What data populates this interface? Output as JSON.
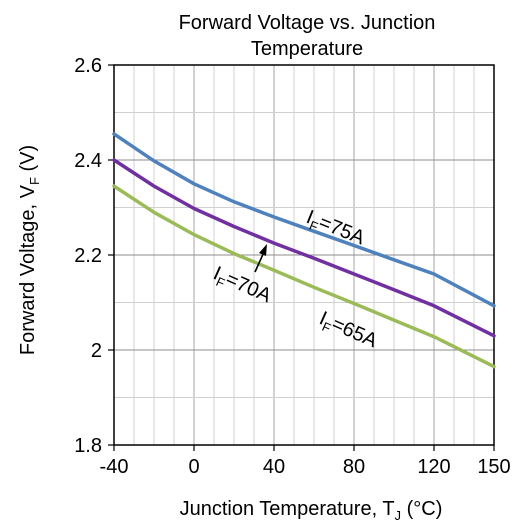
{
  "chart_data": {
    "type": "line",
    "title": [
      "Forward Voltage vs. Junction",
      "Temperature"
    ],
    "xlabel": {
      "main": "Junction Temperature, T",
      "sub": "J",
      "unit": " (°C)"
    },
    "ylabel": {
      "main": "Forward Voltage, V",
      "sub": "F",
      "unit": " (V)"
    },
    "xlim": [
      -40,
      150
    ],
    "ylim": [
      1.8,
      2.6
    ],
    "x_ticks": [
      -40,
      0,
      40,
      80,
      120,
      150
    ],
    "x_tick_labels": [
      "-40",
      "0",
      "40",
      "80",
      "120",
      "150"
    ],
    "y_ticks": [
      1.8,
      2,
      2.2,
      2.4,
      2.6
    ],
    "y_tick_labels": [
      "1.8",
      "2",
      "2.2",
      "2.4",
      "2.6"
    ],
    "grid": true,
    "series": [
      {
        "label": {
          "main": "I",
          "sub": "F",
          "rest": "=75A"
        },
        "color": "#4f81bd",
        "x": [
          -40,
          -20,
          0,
          20,
          40,
          60,
          80,
          100,
          120,
          150
        ],
        "y": [
          2.455,
          2.398,
          2.35,
          2.312,
          2.28,
          2.25,
          2.22,
          2.19,
          2.16,
          2.093
        ]
      },
      {
        "label": {
          "main": "I",
          "sub": "F",
          "rest": "=70A"
        },
        "color": "#7030a0",
        "x": [
          -40,
          -20,
          0,
          20,
          40,
          60,
          80,
          100,
          120,
          150
        ],
        "y": [
          2.4,
          2.345,
          2.298,
          2.26,
          2.225,
          2.193,
          2.16,
          2.127,
          2.093,
          2.03
        ]
      },
      {
        "label": {
          "main": "I",
          "sub": "F",
          "rest": "=65A"
        },
        "color": "#9bbb59",
        "x": [
          -40,
          -20,
          0,
          20,
          40,
          60,
          80,
          100,
          120,
          150
        ],
        "y": [
          2.345,
          2.29,
          2.243,
          2.203,
          2.168,
          2.132,
          2.098,
          2.063,
          2.028,
          1.965
        ]
      }
    ]
  }
}
